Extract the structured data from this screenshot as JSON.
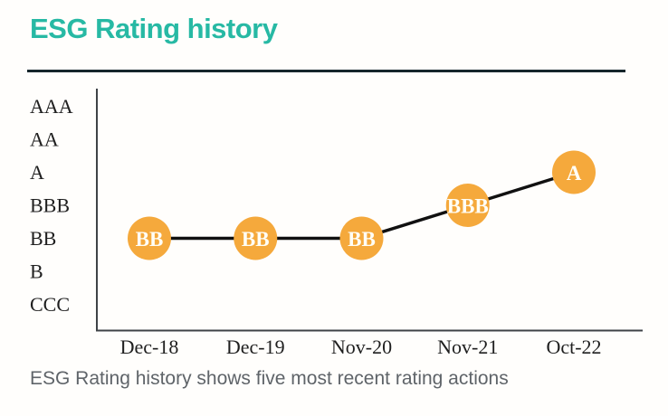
{
  "header": {
    "title": "ESG Rating history"
  },
  "chart_data": {
    "type": "line",
    "title": "ESG Rating history",
    "categories": [
      "Dec-18",
      "Dec-19",
      "Nov-20",
      "Nov-21",
      "Oct-22"
    ],
    "rating_scale": [
      "AAA",
      "AA",
      "A",
      "BBB",
      "BB",
      "B",
      "CCC"
    ],
    "series": [
      {
        "name": "ESG Rating",
        "values": [
          "BB",
          "BB",
          "BB",
          "BBB",
          "A"
        ]
      }
    ],
    "ylabel": "",
    "xlabel": "",
    "grid": false,
    "legend_position": "none",
    "marker_color": "#f5a93c",
    "marker_label_color": "#fffef6",
    "line_color": "#111111",
    "axis_color": "#3f4347"
  },
  "footer": {
    "caption": "ESG Rating history shows five most recent rating actions"
  },
  "theme": {
    "title_color": "#27b9a4",
    "divider_color": "#16262b",
    "caption_color": "#5f6469"
  }
}
